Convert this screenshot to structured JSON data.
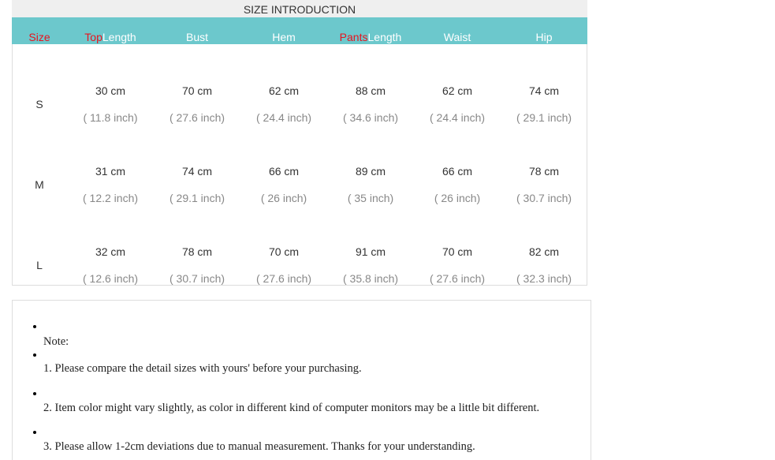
{
  "table": {
    "title": "SIZE INTRODUCTION",
    "header": [
      {
        "highlight": "Size"
      },
      {
        "highlight": "Top",
        "text": "Length"
      },
      {
        "text": "Bust"
      },
      {
        "text": "Hem"
      },
      {
        "highlight": "Pants",
        "text": "Length"
      },
      {
        "text": "Waist"
      },
      {
        "text": "Hip"
      }
    ],
    "rows": [
      {
        "size": "S",
        "cells": [
          {
            "cm": "30 cm",
            "inch": "( 11.8 inch)"
          },
          {
            "cm": "70 cm",
            "inch": "( 27.6 inch)"
          },
          {
            "cm": "62 cm",
            "inch": "( 24.4 inch)"
          },
          {
            "cm": "88 cm",
            "inch": "( 34.6 inch)"
          },
          {
            "cm": "62 cm",
            "inch": "( 24.4 inch)"
          },
          {
            "cm": "74 cm",
            "inch": "( 29.1 inch)"
          }
        ]
      },
      {
        "size": "M",
        "cells": [
          {
            "cm": "31 cm",
            "inch": "( 12.2 inch)"
          },
          {
            "cm": "74 cm",
            "inch": "( 29.1 inch)"
          },
          {
            "cm": "66 cm",
            "inch": "( 26 inch)"
          },
          {
            "cm": "89 cm",
            "inch": "( 35 inch)"
          },
          {
            "cm": "66 cm",
            "inch": "( 26 inch)"
          },
          {
            "cm": "78 cm",
            "inch": "( 30.7 inch)"
          }
        ]
      },
      {
        "size": "L",
        "cells": [
          {
            "cm": "32 cm",
            "inch": "( 12.6 inch)"
          },
          {
            "cm": "78 cm",
            "inch": "( 30.7 inch)"
          },
          {
            "cm": "70 cm",
            "inch": "( 27.6 inch)"
          },
          {
            "cm": "91 cm",
            "inch": "( 35.8 inch)"
          },
          {
            "cm": "70 cm",
            "inch": "( 27.6 inch)"
          },
          {
            "cm": "82 cm",
            "inch": "( 32.3 inch)"
          }
        ]
      }
    ]
  },
  "notes": [
    "Note:",
    "1. Please compare the detail sizes with yours' before your purchasing.",
    "2. Item color might vary slightly, as color in different kind of computer monitors may be a little bit different.",
    "3. Please allow 1-2cm deviations due to manual measurement. Thanks for your understanding."
  ]
}
